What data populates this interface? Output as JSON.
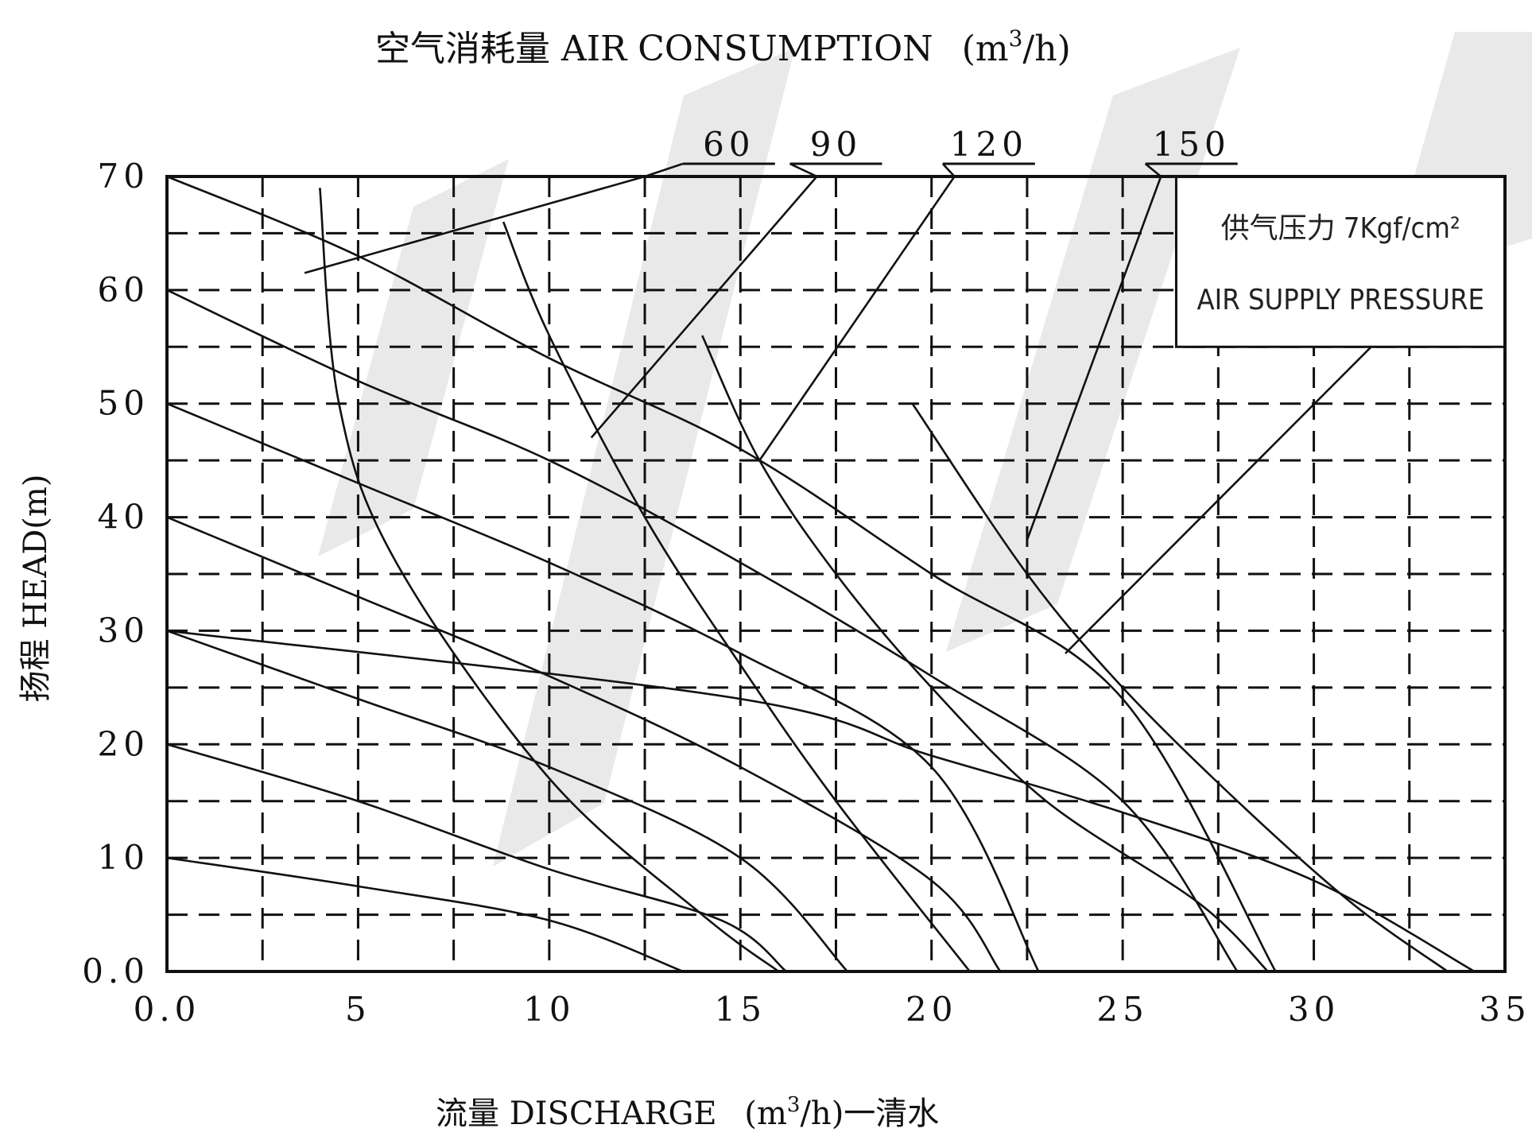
{
  "chart_data": {
    "type": "line",
    "title": "空气消耗量 AIR CONSUMPTION",
    "title_unit_base": "(m",
    "title_unit_sup": "3",
    "title_unit_tail": "/h)",
    "xlabel_prefix": "流量 DISCHARGE",
    "xlabel_unit_base": "(m",
    "xlabel_unit_sup": "3",
    "xlabel_unit_tail": "/h)一清水",
    "ylabel": "扬程 HEAD(m)",
    "xlim": [
      0,
      35
    ],
    "ylim": [
      0,
      70
    ],
    "x_ticks": [
      {
        "value": 0,
        "label": "0.0"
      },
      {
        "value": 5,
        "label": "5"
      },
      {
        "value": 10,
        "label": "10"
      },
      {
        "value": 15,
        "label": "15"
      },
      {
        "value": 20,
        "label": "20"
      },
      {
        "value": 25,
        "label": "25"
      },
      {
        "value": 30,
        "label": "30"
      },
      {
        "value": 35,
        "label": "35"
      }
    ],
    "y_ticks": [
      {
        "value": 0,
        "label": "0.0"
      },
      {
        "value": 10,
        "label": "10"
      },
      {
        "value": 20,
        "label": "20"
      },
      {
        "value": 30,
        "label": "30"
      },
      {
        "value": 40,
        "label": "40"
      },
      {
        "value": 50,
        "label": "50"
      },
      {
        "value": 60,
        "label": "60"
      },
      {
        "value": 70,
        "label": "70"
      }
    ],
    "x_grid": [
      2.5,
      5,
      7.5,
      10,
      12.5,
      15,
      17.5,
      20,
      22.5,
      25,
      27.5,
      30,
      32.5
    ],
    "y_grid": [
      5,
      10,
      15,
      20,
      25,
      30,
      35,
      40,
      45,
      50,
      55,
      60,
      65
    ],
    "grid": true,
    "legend_box": {
      "line1": "供气压力 7Kgf/cm²",
      "line2": "AIR SUPPLY PRESSURE",
      "x_range": [
        26.4,
        35
      ],
      "y_range": [
        55,
        70
      ]
    },
    "pressure_curves": [
      {
        "points": [
          [
            0,
            10
          ],
          [
            5,
            7.5
          ],
          [
            10,
            4.5
          ],
          [
            13.5,
            0
          ]
        ]
      },
      {
        "points": [
          [
            0,
            20
          ],
          [
            5,
            15
          ],
          [
            10,
            9
          ],
          [
            14.5,
            4.5
          ],
          [
            16.2,
            0
          ]
        ]
      },
      {
        "points": [
          [
            0,
            30
          ],
          [
            5,
            24
          ],
          [
            10,
            18
          ],
          [
            15,
            10
          ],
          [
            17.8,
            0
          ]
        ]
      },
      {
        "points": [
          [
            0,
            40
          ],
          [
            5,
            33
          ],
          [
            10,
            26
          ],
          [
            15,
            18
          ],
          [
            20,
            8
          ],
          [
            21.8,
            0
          ]
        ]
      },
      {
        "points": [
          [
            0,
            50
          ],
          [
            5,
            43
          ],
          [
            10,
            36
          ],
          [
            15,
            28
          ],
          [
            20,
            18
          ],
          [
            22.8,
            0
          ]
        ]
      },
      {
        "points": [
          [
            0,
            60
          ],
          [
            5,
            52
          ],
          [
            10,
            45
          ],
          [
            15,
            36
          ],
          [
            20,
            26
          ],
          [
            25,
            15
          ],
          [
            28,
            0
          ]
        ]
      },
      {
        "points": [
          [
            0,
            70
          ],
          [
            5,
            63
          ],
          [
            10,
            54
          ],
          [
            15,
            46
          ],
          [
            20,
            35
          ],
          [
            25,
            24
          ],
          [
            29,
            0
          ]
        ]
      },
      {
        "points": [
          [
            4,
            69
          ],
          [
            4.5,
            50
          ],
          [
            6,
            36
          ],
          [
            10,
            17
          ],
          [
            14,
            5
          ],
          [
            16,
            0
          ]
        ]
      },
      {
        "points": [
          [
            8.8,
            66
          ],
          [
            10,
            56
          ],
          [
            12.5,
            40
          ],
          [
            15,
            27
          ],
          [
            17.5,
            15
          ],
          [
            21,
            0
          ]
        ]
      },
      {
        "points": [
          [
            14,
            56
          ],
          [
            15.5,
            45
          ],
          [
            17.5,
            35
          ],
          [
            20,
            25
          ],
          [
            23,
            15
          ],
          [
            27,
            6
          ],
          [
            28.8,
            0
          ]
        ]
      },
      {
        "points": [
          [
            19.5,
            50
          ],
          [
            22.5,
            35
          ],
          [
            25,
            25
          ],
          [
            28,
            15
          ],
          [
            31,
            6
          ],
          [
            33.5,
            0
          ]
        ]
      },
      {
        "points": [
          [
            0,
            30
          ],
          [
            15,
            24
          ],
          [
            20,
            19
          ],
          [
            25,
            14
          ],
          [
            30,
            8
          ],
          [
            34.2,
            0
          ]
        ]
      }
    ],
    "air_consumption_labels": [
      {
        "label": "60",
        "label_x": 14.7,
        "leader": [
          [
            12.5,
            70
          ],
          [
            3.6,
            61.5
          ]
        ]
      },
      {
        "label": "90",
        "label_x": 17.5,
        "leader": [
          [
            17,
            70
          ],
          [
            11.1,
            47
          ]
        ]
      },
      {
        "label": "120",
        "label_x": 21.5,
        "leader": [
          [
            20.6,
            70
          ],
          [
            15.5,
            45
          ]
        ]
      },
      {
        "label": "150",
        "label_x": 26.8,
        "leader": [
          [
            26,
            70
          ],
          [
            22.5,
            38
          ]
        ]
      },
      {
        "leader": [
          [
            31.5,
            55
          ],
          [
            23.5,
            28
          ]
        ]
      }
    ]
  },
  "watermark": {
    "color": "#9a9a9a"
  }
}
